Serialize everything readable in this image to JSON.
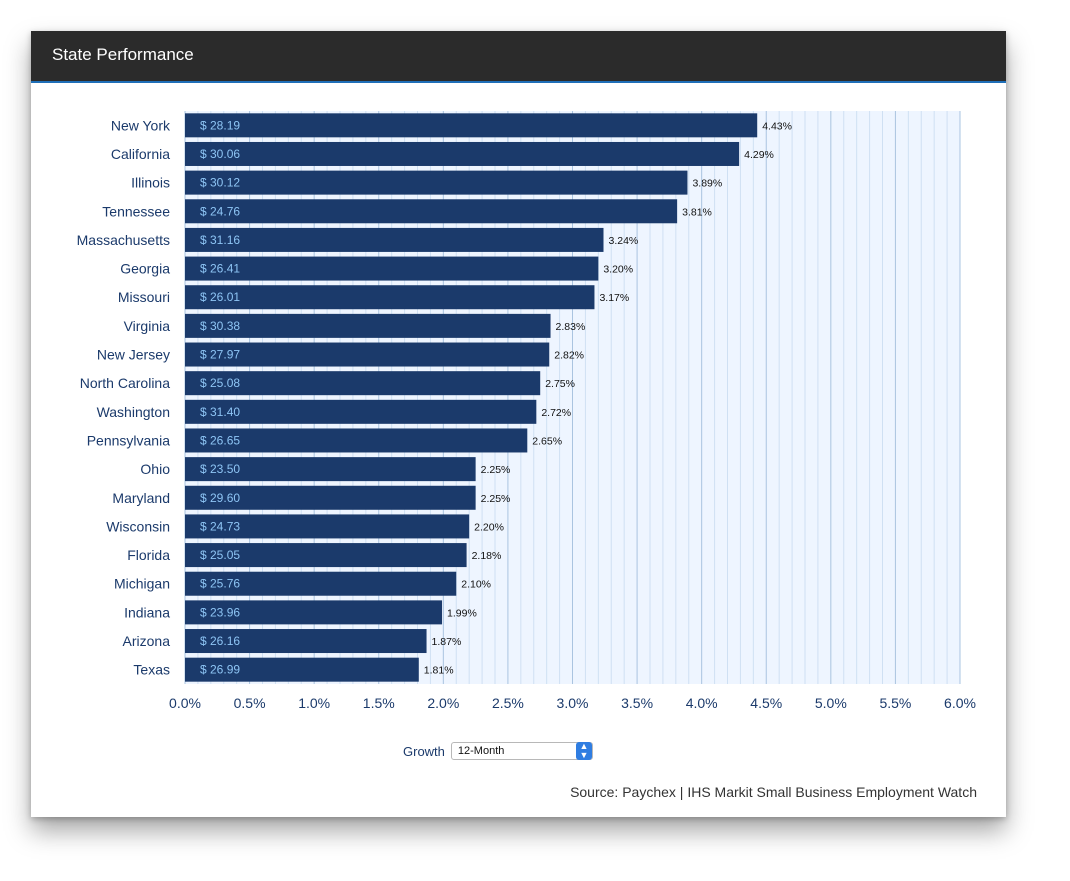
{
  "panel": {
    "title": "State Performance"
  },
  "controls": {
    "growth_label": "Growth",
    "period_value": "12-Month",
    "arrow_icon": "chevron-up-down-icon"
  },
  "source_text": "Source: Paychex | IHS Markit Small Business Employment Watch",
  "colors": {
    "bar": "#1b3a6b",
    "bar_label": "#8ec5f5",
    "plot_background": "#eef5ff",
    "grid_major": "#aac4e0",
    "grid_minor": "#cfe0f3",
    "category_text": "#1b3a6b",
    "tick_text": "#1b3a6b"
  },
  "chart_data": {
    "type": "bar",
    "orientation": "horizontal",
    "categories": [
      "New York",
      "California",
      "Illinois",
      "Tennessee",
      "Massachusetts",
      "Georgia",
      "Missouri",
      "Virginia",
      "New Jersey",
      "North Carolina",
      "Washington",
      "Pennsylvania",
      "Ohio",
      "Maryland",
      "Wisconsin",
      "Florida",
      "Michigan",
      "Indiana",
      "Arizona",
      "Texas"
    ],
    "values": [
      4.43,
      4.29,
      3.89,
      3.81,
      3.24,
      3.2,
      3.17,
      2.83,
      2.82,
      2.75,
      2.72,
      2.65,
      2.25,
      2.25,
      2.2,
      2.18,
      2.1,
      1.99,
      1.87,
      1.81
    ],
    "value_labels": [
      "4.43%",
      "4.29%",
      "3.89%",
      "3.81%",
      "3.24%",
      "3.20%",
      "3.17%",
      "2.83%",
      "2.82%",
      "2.75%",
      "2.72%",
      "2.65%",
      "2.25%",
      "2.25%",
      "2.20%",
      "2.18%",
      "2.10%",
      "1.99%",
      "1.87%",
      "1.81%"
    ],
    "wage_labels": [
      "$ 28.19",
      "$ 30.06",
      "$ 30.12",
      "$ 24.76",
      "$ 31.16",
      "$ 26.41",
      "$ 26.01",
      "$ 30.38",
      "$ 27.97",
      "$ 25.08",
      "$ 31.40",
      "$ 26.65",
      "$ 23.50",
      "$ 29.60",
      "$ 24.73",
      "$ 25.05",
      "$ 25.76",
      "$ 23.96",
      "$ 26.16",
      "$ 26.99"
    ],
    "x_ticks": [
      "0.0%",
      "0.5%",
      "1.0%",
      "1.5%",
      "2.0%",
      "2.5%",
      "3.0%",
      "3.5%",
      "4.0%",
      "4.5%",
      "5.0%",
      "5.5%",
      "6.0%"
    ],
    "xlim": [
      0,
      6
    ],
    "xlabel": "",
    "ylabel": "",
    "grid": true
  }
}
